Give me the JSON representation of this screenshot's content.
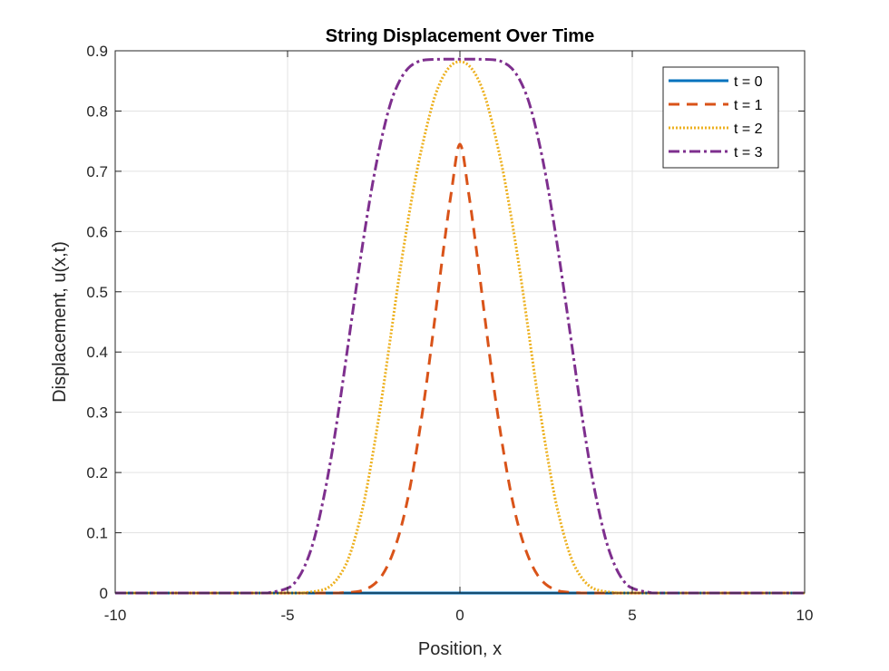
{
  "chart_data": {
    "type": "line",
    "title": "String Displacement Over Time",
    "xlabel": "Position, x",
    "ylabel": "Displacement, u(x,t)",
    "xlim": [
      -10,
      10
    ],
    "ylim": [
      0,
      0.9
    ],
    "xticks": [
      -10,
      -5,
      0,
      5,
      10
    ],
    "yticks": [
      0,
      0.1,
      0.2,
      0.3,
      0.4,
      0.5,
      0.6,
      0.7,
      0.8,
      0.9
    ],
    "xtick_labels": [
      "-10",
      "-5",
      "0",
      "5",
      "10"
    ],
    "ytick_labels": [
      "0",
      "0.1",
      "0.2",
      "0.3",
      "0.4",
      "0.5",
      "0.6",
      "0.7",
      "0.8",
      "0.9"
    ],
    "grid": true,
    "legend_position": "top-right",
    "series": [
      {
        "name": "t = 0",
        "color": "#0072BD",
        "style": "solid",
        "x": [
          -10,
          10
        ],
        "y": [
          0,
          0
        ]
      },
      {
        "name": "t = 1",
        "color": "#D95319",
        "style": "dashed",
        "x": [
          -10,
          -5,
          -4,
          -3.5,
          -3,
          -2.75,
          -2.5,
          -2.25,
          -2,
          -1.75,
          -1.5,
          -1.25,
          -1,
          -0.75,
          -0.5,
          -0.25,
          0,
          0.25,
          0.5,
          0.75,
          1,
          1.25,
          1.5,
          1.75,
          2,
          2.25,
          2.5,
          2.75,
          3,
          3.5,
          4,
          5,
          10
        ],
        "y": [
          0,
          0,
          0,
          0.0002,
          0.002,
          0.006,
          0.014,
          0.03,
          0.058,
          0.1,
          0.16,
          0.24,
          0.335,
          0.445,
          0.56,
          0.665,
          0.745,
          0.665,
          0.56,
          0.445,
          0.335,
          0.24,
          0.16,
          0.1,
          0.058,
          0.03,
          0.014,
          0.006,
          0.002,
          0.0002,
          0,
          0,
          0
        ]
      },
      {
        "name": "t = 2",
        "color": "#EDB120",
        "style": "dotted",
        "x": [
          -10,
          -5,
          -4.5,
          -4,
          -3.75,
          -3.5,
          -3.25,
          -3,
          -2.75,
          -2.5,
          -2.25,
          -2,
          -1.75,
          -1.5,
          -1.25,
          -1,
          -0.75,
          -0.5,
          -0.25,
          0,
          0.25,
          0.5,
          0.75,
          1,
          1.25,
          1.5,
          1.75,
          2,
          2.25,
          2.5,
          2.75,
          3,
          3.25,
          3.5,
          3.75,
          4,
          4.5,
          5,
          10
        ],
        "y": [
          0,
          0,
          0.0005,
          0.005,
          0.012,
          0.028,
          0.055,
          0.1,
          0.16,
          0.24,
          0.33,
          0.43,
          0.53,
          0.62,
          0.7,
          0.765,
          0.82,
          0.856,
          0.876,
          0.882,
          0.876,
          0.856,
          0.82,
          0.765,
          0.7,
          0.62,
          0.53,
          0.43,
          0.33,
          0.24,
          0.16,
          0.1,
          0.055,
          0.028,
          0.012,
          0.005,
          0.0005,
          0,
          0
        ]
      },
      {
        "name": "t = 3",
        "color": "#7E2F8E",
        "style": "dashdot",
        "x": [
          -10,
          -6,
          -5.5,
          -5,
          -4.75,
          -4.5,
          -4.25,
          -4,
          -3.75,
          -3.5,
          -3.25,
          -3,
          -2.75,
          -2.5,
          -2.25,
          -2,
          -1.75,
          -1.5,
          -1.25,
          -1,
          -0.5,
          0,
          0.5,
          1,
          1.25,
          1.5,
          1.75,
          2,
          2.25,
          2.5,
          2.75,
          3,
          3.25,
          3.5,
          3.75,
          4,
          4.25,
          4.5,
          4.75,
          5,
          5.5,
          6,
          10
        ],
        "y": [
          0,
          0,
          0.001,
          0.008,
          0.02,
          0.045,
          0.085,
          0.145,
          0.22,
          0.31,
          0.41,
          0.51,
          0.605,
          0.69,
          0.76,
          0.815,
          0.85,
          0.871,
          0.881,
          0.885,
          0.886,
          0.886,
          0.886,
          0.885,
          0.881,
          0.871,
          0.85,
          0.815,
          0.76,
          0.69,
          0.605,
          0.51,
          0.41,
          0.31,
          0.22,
          0.145,
          0.085,
          0.045,
          0.02,
          0.008,
          0.001,
          0,
          0
        ]
      }
    ]
  }
}
